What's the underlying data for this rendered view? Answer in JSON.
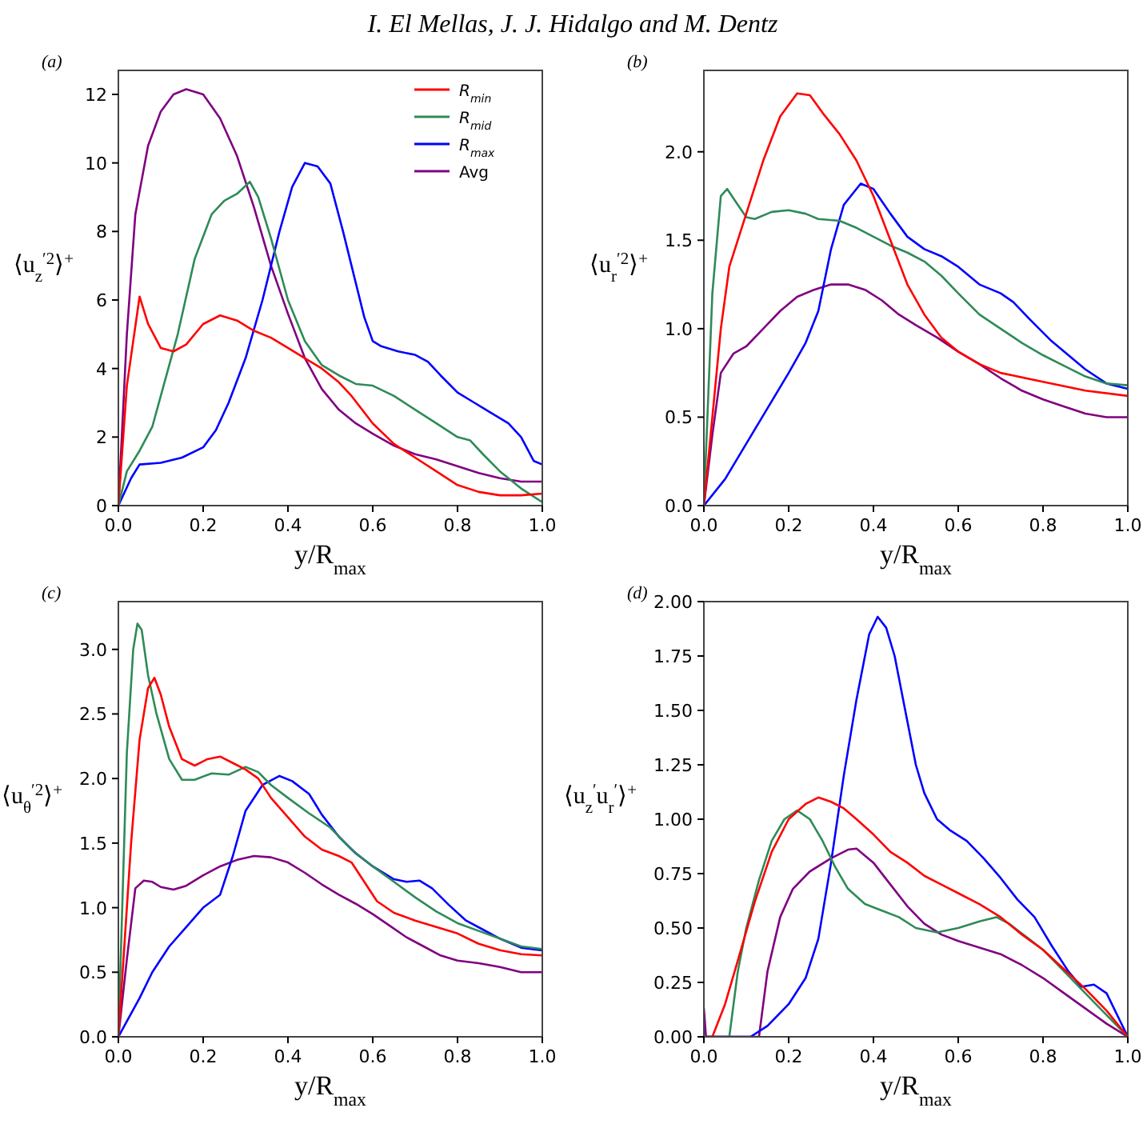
{
  "chart_data": [
    {
      "type": "line",
      "title": "I. El Mellas, J. J. Hidalgo and M. Dentz",
      "annotations": [
        "(a)"
      ],
      "xlabel": "y/R$_{max}$",
      "ylabel": "⟨u$_{z}$$^{′2}$⟩$^{+}$",
      "xlim": [
        0,
        1
      ],
      "ylim": [
        0,
        12.7
      ],
      "xticks": [
        {
          "value": 0,
          "label": "0.0"
        },
        {
          "value": 0.2,
          "label": "0.2"
        },
        {
          "value": 0.4,
          "label": "0.4"
        },
        {
          "value": 0.6,
          "label": "0.6"
        },
        {
          "value": 0.8,
          "label": "0.8"
        },
        {
          "value": 1,
          "label": "1.0"
        }
      ],
      "yticks": [
        0,
        2,
        4,
        6,
        8,
        10,
        12
      ],
      "legend": "top right",
      "series": [
        {
          "name": "R$_{min}$",
          "color": "#ff0000",
          "x": [
            0,
            0.02,
            0.05,
            0.07,
            0.1,
            0.13,
            0.16,
            0.2,
            0.24,
            0.28,
            0.32,
            0.36,
            0.4,
            0.44,
            0.48,
            0.52,
            0.55,
            0.6,
            0.65,
            0.7,
            0.75,
            0.8,
            0.85,
            0.9,
            0.95,
            1.0
          ],
          "values": [
            0,
            3.5,
            6.1,
            5.3,
            4.6,
            4.5,
            4.7,
            5.3,
            5.55,
            5.4,
            5.1,
            4.9,
            4.6,
            4.3,
            4.0,
            3.6,
            3.2,
            2.4,
            1.8,
            1.4,
            1.0,
            0.6,
            0.4,
            0.3,
            0.3,
            0.35
          ]
        },
        {
          "name": "R$_{mid}$",
          "color": "#2e8b57",
          "x": [
            0,
            0.02,
            0.05,
            0.08,
            0.1,
            0.14,
            0.18,
            0.22,
            0.25,
            0.28,
            0.31,
            0.33,
            0.36,
            0.4,
            0.44,
            0.48,
            0.52,
            0.56,
            0.6,
            0.65,
            0.7,
            0.75,
            0.8,
            0.83,
            0.86,
            0.9,
            0.95,
            1.0
          ],
          "values": [
            0,
            1.0,
            1.6,
            2.3,
            3.2,
            5.0,
            7.2,
            8.5,
            8.9,
            9.1,
            9.45,
            9.0,
            7.8,
            6.0,
            4.8,
            4.1,
            3.8,
            3.55,
            3.5,
            3.2,
            2.8,
            2.4,
            2.0,
            1.9,
            1.5,
            1.0,
            0.5,
            0.1
          ]
        },
        {
          "name": "R$_{max}$",
          "color": "#0000ff",
          "x": [
            0,
            0.03,
            0.05,
            0.1,
            0.15,
            0.2,
            0.23,
            0.26,
            0.3,
            0.34,
            0.38,
            0.41,
            0.44,
            0.47,
            0.5,
            0.53,
            0.56,
            0.58,
            0.6,
            0.62,
            0.66,
            0.7,
            0.73,
            0.76,
            0.8,
            0.84,
            0.88,
            0.92,
            0.95,
            0.98,
            1.0
          ],
          "values": [
            0,
            0.8,
            1.2,
            1.25,
            1.4,
            1.7,
            2.2,
            3.0,
            4.3,
            6.0,
            8.0,
            9.3,
            10.0,
            9.9,
            9.4,
            8.0,
            6.5,
            5.5,
            4.8,
            4.65,
            4.5,
            4.4,
            4.2,
            3.8,
            3.3,
            3.0,
            2.7,
            2.4,
            2.0,
            1.3,
            1.2
          ]
        },
        {
          "name": "Avg",
          "color": "#800080",
          "x": [
            0,
            0.02,
            0.04,
            0.07,
            0.1,
            0.13,
            0.16,
            0.2,
            0.24,
            0.28,
            0.32,
            0.36,
            0.4,
            0.44,
            0.48,
            0.52,
            0.56,
            0.6,
            0.65,
            0.7,
            0.75,
            0.8,
            0.85,
            0.9,
            0.95,
            1.0
          ],
          "values": [
            0,
            5.0,
            8.5,
            10.5,
            11.5,
            12.0,
            12.15,
            12.0,
            11.3,
            10.2,
            8.7,
            7.0,
            5.6,
            4.3,
            3.4,
            2.8,
            2.4,
            2.1,
            1.75,
            1.5,
            1.35,
            1.15,
            0.95,
            0.8,
            0.7,
            0.7
          ]
        }
      ]
    },
    {
      "type": "line",
      "annotations": [
        "(b)"
      ],
      "xlabel": "y/R$_{max}$",
      "ylabel": "⟨u$_{r}$$^{′2}$⟩$^{+}$",
      "xlim": [
        0,
        1
      ],
      "ylim": [
        0,
        2.46
      ],
      "xticks": [
        {
          "value": 0,
          "label": "0.0"
        },
        {
          "value": 0.2,
          "label": "0.2"
        },
        {
          "value": 0.4,
          "label": "0.4"
        },
        {
          "value": 0.6,
          "label": "0.6"
        },
        {
          "value": 0.8,
          "label": "0.8"
        },
        {
          "value": 1,
          "label": "1.0"
        }
      ],
      "yticks": [
        {
          "value": 0,
          "label": "0.0"
        },
        {
          "value": 0.5,
          "label": "0.5"
        },
        {
          "value": 1,
          "label": "1.0"
        },
        {
          "value": 1.5,
          "label": "1.5"
        },
        {
          "value": 2,
          "label": "2.0"
        }
      ],
      "series": [
        {
          "color": "#ff0000",
          "x": [
            0,
            0.02,
            0.04,
            0.06,
            0.1,
            0.14,
            0.18,
            0.22,
            0.25,
            0.28,
            0.32,
            0.36,
            0.4,
            0.44,
            0.48,
            0.52,
            0.56,
            0.6,
            0.65,
            0.7,
            0.8,
            0.9,
            1.0
          ],
          "values": [
            0,
            0.5,
            1.0,
            1.35,
            1.65,
            1.95,
            2.2,
            2.33,
            2.32,
            2.22,
            2.1,
            1.95,
            1.75,
            1.5,
            1.25,
            1.08,
            0.95,
            0.87,
            0.8,
            0.75,
            0.7,
            0.65,
            0.62
          ]
        },
        {
          "color": "#2e8b57",
          "x": [
            0,
            0.02,
            0.04,
            0.055,
            0.08,
            0.1,
            0.12,
            0.16,
            0.2,
            0.24,
            0.27,
            0.32,
            0.36,
            0.4,
            0.44,
            0.48,
            0.52,
            0.56,
            0.6,
            0.65,
            0.7,
            0.75,
            0.8,
            0.85,
            0.9,
            0.95,
            1.0
          ],
          "values": [
            0,
            1.2,
            1.75,
            1.79,
            1.7,
            1.63,
            1.62,
            1.66,
            1.67,
            1.65,
            1.62,
            1.61,
            1.57,
            1.52,
            1.47,
            1.43,
            1.38,
            1.3,
            1.2,
            1.08,
            1.0,
            0.92,
            0.85,
            0.79,
            0.73,
            0.69,
            0.68
          ]
        },
        {
          "color": "#0000ff",
          "x": [
            0,
            0.05,
            0.1,
            0.15,
            0.2,
            0.24,
            0.27,
            0.3,
            0.33,
            0.37,
            0.4,
            0.44,
            0.48,
            0.52,
            0.56,
            0.6,
            0.65,
            0.7,
            0.73,
            0.77,
            0.82,
            0.86,
            0.9,
            0.95,
            1.0
          ],
          "values": [
            0,
            0.15,
            0.35,
            0.55,
            0.75,
            0.92,
            1.1,
            1.45,
            1.7,
            1.82,
            1.79,
            1.65,
            1.52,
            1.45,
            1.41,
            1.35,
            1.25,
            1.2,
            1.15,
            1.05,
            0.93,
            0.85,
            0.77,
            0.69,
            0.66
          ]
        },
        {
          "color": "#800080",
          "x": [
            0,
            0.02,
            0.04,
            0.07,
            0.1,
            0.14,
            0.18,
            0.22,
            0.26,
            0.3,
            0.34,
            0.38,
            0.42,
            0.46,
            0.5,
            0.55,
            0.6,
            0.65,
            0.7,
            0.75,
            0.8,
            0.85,
            0.9,
            0.95,
            1.0
          ],
          "values": [
            0,
            0.4,
            0.75,
            0.86,
            0.9,
            1.0,
            1.1,
            1.18,
            1.22,
            1.25,
            1.25,
            1.22,
            1.16,
            1.08,
            1.02,
            0.95,
            0.87,
            0.8,
            0.72,
            0.65,
            0.6,
            0.56,
            0.52,
            0.5,
            0.5
          ]
        }
      ]
    },
    {
      "type": "line",
      "annotations": [
        "(c)"
      ],
      "xlabel": "y/R$_{max}$",
      "ylabel": "⟨u$_{θ}$$^{′2}$⟩$^{+}$",
      "xlim": [
        0,
        1
      ],
      "ylim": [
        0,
        3.37
      ],
      "xticks": [
        {
          "value": 0,
          "label": "0.0"
        },
        {
          "value": 0.2,
          "label": "0.2"
        },
        {
          "value": 0.4,
          "label": "0.4"
        },
        {
          "value": 0.6,
          "label": "0.6"
        },
        {
          "value": 0.8,
          "label": "0.8"
        },
        {
          "value": 1,
          "label": "1.0"
        }
      ],
      "yticks": [
        {
          "value": 0,
          "label": "0.0"
        },
        {
          "value": 0.5,
          "label": "0.5"
        },
        {
          "value": 1,
          "label": "1.0"
        },
        {
          "value": 1.5,
          "label": "1.5"
        },
        {
          "value": 2,
          "label": "2.0"
        },
        {
          "value": 2.5,
          "label": "2.5"
        },
        {
          "value": 3,
          "label": "3.0"
        }
      ],
      "series": [
        {
          "color": "#ff0000",
          "x": [
            0,
            0.03,
            0.05,
            0.07,
            0.085,
            0.1,
            0.12,
            0.15,
            0.18,
            0.21,
            0.24,
            0.27,
            0.3,
            0.33,
            0.36,
            0.4,
            0.44,
            0.48,
            0.52,
            0.55,
            0.58,
            0.61,
            0.65,
            0.7,
            0.75,
            0.8,
            0.85,
            0.9,
            0.95,
            1.0
          ],
          "values": [
            0,
            1.5,
            2.3,
            2.7,
            2.78,
            2.65,
            2.4,
            2.15,
            2.1,
            2.15,
            2.17,
            2.12,
            2.07,
            2.0,
            1.85,
            1.7,
            1.55,
            1.45,
            1.4,
            1.35,
            1.2,
            1.05,
            0.96,
            0.9,
            0.85,
            0.8,
            0.72,
            0.67,
            0.64,
            0.63
          ]
        },
        {
          "color": "#2e8b57",
          "x": [
            0,
            0.02,
            0.035,
            0.045,
            0.055,
            0.07,
            0.09,
            0.12,
            0.15,
            0.18,
            0.22,
            0.26,
            0.3,
            0.33,
            0.36,
            0.4,
            0.45,
            0.5,
            0.55,
            0.6,
            0.65,
            0.7,
            0.75,
            0.8,
            0.85,
            0.9,
            0.95,
            1.0
          ],
          "values": [
            0,
            2.2,
            3.0,
            3.2,
            3.15,
            2.8,
            2.5,
            2.15,
            1.99,
            1.99,
            2.04,
            2.03,
            2.09,
            2.05,
            1.95,
            1.85,
            1.73,
            1.62,
            1.45,
            1.32,
            1.2,
            1.08,
            0.97,
            0.88,
            0.82,
            0.76,
            0.7,
            0.68
          ]
        },
        {
          "color": "#0000ff",
          "x": [
            0,
            0.05,
            0.08,
            0.12,
            0.16,
            0.2,
            0.24,
            0.27,
            0.3,
            0.34,
            0.38,
            0.41,
            0.45,
            0.48,
            0.52,
            0.56,
            0.6,
            0.65,
            0.68,
            0.71,
            0.74,
            0.78,
            0.82,
            0.86,
            0.9,
            0.95,
            1.0
          ],
          "values": [
            0,
            0.3,
            0.5,
            0.7,
            0.85,
            1.0,
            1.1,
            1.4,
            1.75,
            1.95,
            2.02,
            1.98,
            1.88,
            1.72,
            1.55,
            1.42,
            1.32,
            1.22,
            1.2,
            1.21,
            1.15,
            1.02,
            0.9,
            0.83,
            0.76,
            0.69,
            0.67
          ]
        },
        {
          "color": "#800080",
          "x": [
            0,
            0.02,
            0.04,
            0.06,
            0.08,
            0.1,
            0.13,
            0.16,
            0.2,
            0.24,
            0.28,
            0.32,
            0.36,
            0.4,
            0.44,
            0.48,
            0.52,
            0.56,
            0.6,
            0.64,
            0.68,
            0.72,
            0.76,
            0.8,
            0.85,
            0.9,
            0.95,
            1.0
          ],
          "values": [
            0,
            0.6,
            1.15,
            1.21,
            1.2,
            1.16,
            1.14,
            1.17,
            1.25,
            1.32,
            1.37,
            1.4,
            1.39,
            1.35,
            1.27,
            1.18,
            1.1,
            1.03,
            0.95,
            0.86,
            0.77,
            0.7,
            0.63,
            0.59,
            0.57,
            0.54,
            0.5,
            0.5
          ]
        }
      ]
    },
    {
      "type": "line",
      "annotations": [
        "(d)"
      ],
      "xlabel": "y/R$_{max}$",
      "ylabel": "⟨u$_{z}$$^{′}$u$_{r}$$^{′}$⟩$^{+}$",
      "xlim": [
        0,
        1
      ],
      "ylim": [
        0,
        2
      ],
      "xticks": [
        {
          "value": 0,
          "label": "0.0"
        },
        {
          "value": 0.2,
          "label": "0.2"
        },
        {
          "value": 0.4,
          "label": "0.4"
        },
        {
          "value": 0.6,
          "label": "0.6"
        },
        {
          "value": 0.8,
          "label": "0.8"
        },
        {
          "value": 1,
          "label": "1.0"
        }
      ],
      "yticks": [
        {
          "value": 0,
          "label": "0.00"
        },
        {
          "value": 0.25,
          "label": "0.25"
        },
        {
          "value": 0.5,
          "label": "0.50"
        },
        {
          "value": 0.75,
          "label": "0.75"
        },
        {
          "value": 1,
          "label": "1.00"
        },
        {
          "value": 1.25,
          "label": "1.25"
        },
        {
          "value": 1.5,
          "label": "1.50"
        },
        {
          "value": 1.75,
          "label": "1.75"
        },
        {
          "value": 2,
          "label": "2.00"
        }
      ],
      "series": [
        {
          "color": "#ff0000",
          "x": [
            0,
            0.02,
            0.05,
            0.08,
            0.12,
            0.16,
            0.2,
            0.24,
            0.27,
            0.3,
            0.33,
            0.36,
            0.4,
            0.44,
            0.48,
            0.52,
            0.56,
            0.6,
            0.65,
            0.7,
            0.75,
            0.8,
            0.85,
            0.9,
            0.95,
            1.0
          ],
          "values": [
            0,
            0,
            0.15,
            0.35,
            0.62,
            0.85,
            1.0,
            1.07,
            1.1,
            1.08,
            1.05,
            1.0,
            0.93,
            0.85,
            0.8,
            0.74,
            0.7,
            0.66,
            0.61,
            0.55,
            0.47,
            0.4,
            0.31,
            0.22,
            0.12,
            0
          ]
        },
        {
          "color": "#2e8b57",
          "x": [
            0,
            0.06,
            0.08,
            0.1,
            0.13,
            0.16,
            0.19,
            0.22,
            0.25,
            0.28,
            0.31,
            0.34,
            0.38,
            0.42,
            0.46,
            0.5,
            0.55,
            0.6,
            0.65,
            0.69,
            0.72,
            0.76,
            0.8,
            0.85,
            0.9,
            0.95,
            1.0
          ],
          "values": [
            0,
            0,
            0.3,
            0.5,
            0.72,
            0.9,
            1.0,
            1.04,
            1.0,
            0.9,
            0.78,
            0.68,
            0.61,
            0.58,
            0.55,
            0.5,
            0.48,
            0.5,
            0.53,
            0.55,
            0.52,
            0.46,
            0.4,
            0.3,
            0.2,
            0.1,
            0
          ]
        },
        {
          "color": "#0000ff",
          "x": [
            0,
            0.11,
            0.15,
            0.2,
            0.24,
            0.27,
            0.3,
            0.33,
            0.36,
            0.39,
            0.41,
            0.43,
            0.45,
            0.47,
            0.5,
            0.52,
            0.55,
            0.58,
            0.62,
            0.66,
            0.7,
            0.74,
            0.78,
            0.82,
            0.86,
            0.89,
            0.92,
            0.95,
            0.98,
            1.0
          ],
          "values": [
            0,
            0,
            0.05,
            0.15,
            0.27,
            0.45,
            0.8,
            1.2,
            1.55,
            1.85,
            1.93,
            1.88,
            1.75,
            1.55,
            1.25,
            1.12,
            1.0,
            0.95,
            0.9,
            0.82,
            0.73,
            0.63,
            0.55,
            0.42,
            0.3,
            0.23,
            0.24,
            0.2,
            0.08,
            0
          ]
        },
        {
          "color": "#800080",
          "x": [
            0,
            0.005,
            0.13,
            0.15,
            0.18,
            0.21,
            0.25,
            0.3,
            0.34,
            0.36,
            0.4,
            0.44,
            0.48,
            0.52,
            0.56,
            0.6,
            0.65,
            0.7,
            0.75,
            0.8,
            0.85,
            0.9,
            0.95,
            1.0
          ],
          "values": [
            0.13,
            0,
            0,
            0.3,
            0.55,
            0.68,
            0.76,
            0.82,
            0.86,
            0.865,
            0.8,
            0.7,
            0.6,
            0.52,
            0.47,
            0.44,
            0.41,
            0.38,
            0.33,
            0.27,
            0.2,
            0.13,
            0.06,
            0
          ]
        }
      ]
    }
  ]
}
